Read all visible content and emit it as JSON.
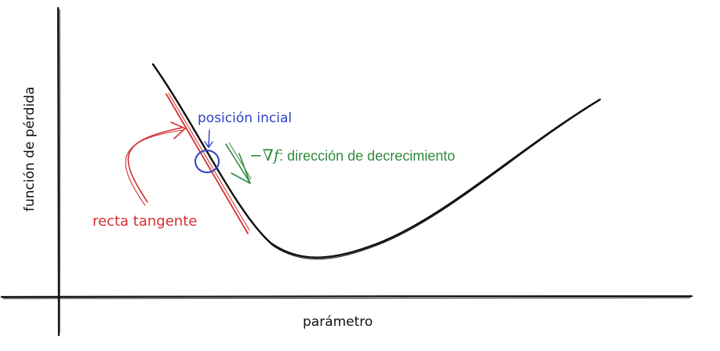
{
  "labels": {
    "y_axis": "función de pérdida",
    "x_axis": "parámetro",
    "start": "posición incial",
    "tangent": "recta tangente",
    "gradient_symbol": "−∇f",
    "gradient_text": ": dirección de decrecimiento"
  },
  "colors": {
    "axis": "#111111",
    "curve": "#111111",
    "tangent": "#d62f2f",
    "start": "#2f3fc6",
    "gradient": "#2e8b3a"
  }
}
